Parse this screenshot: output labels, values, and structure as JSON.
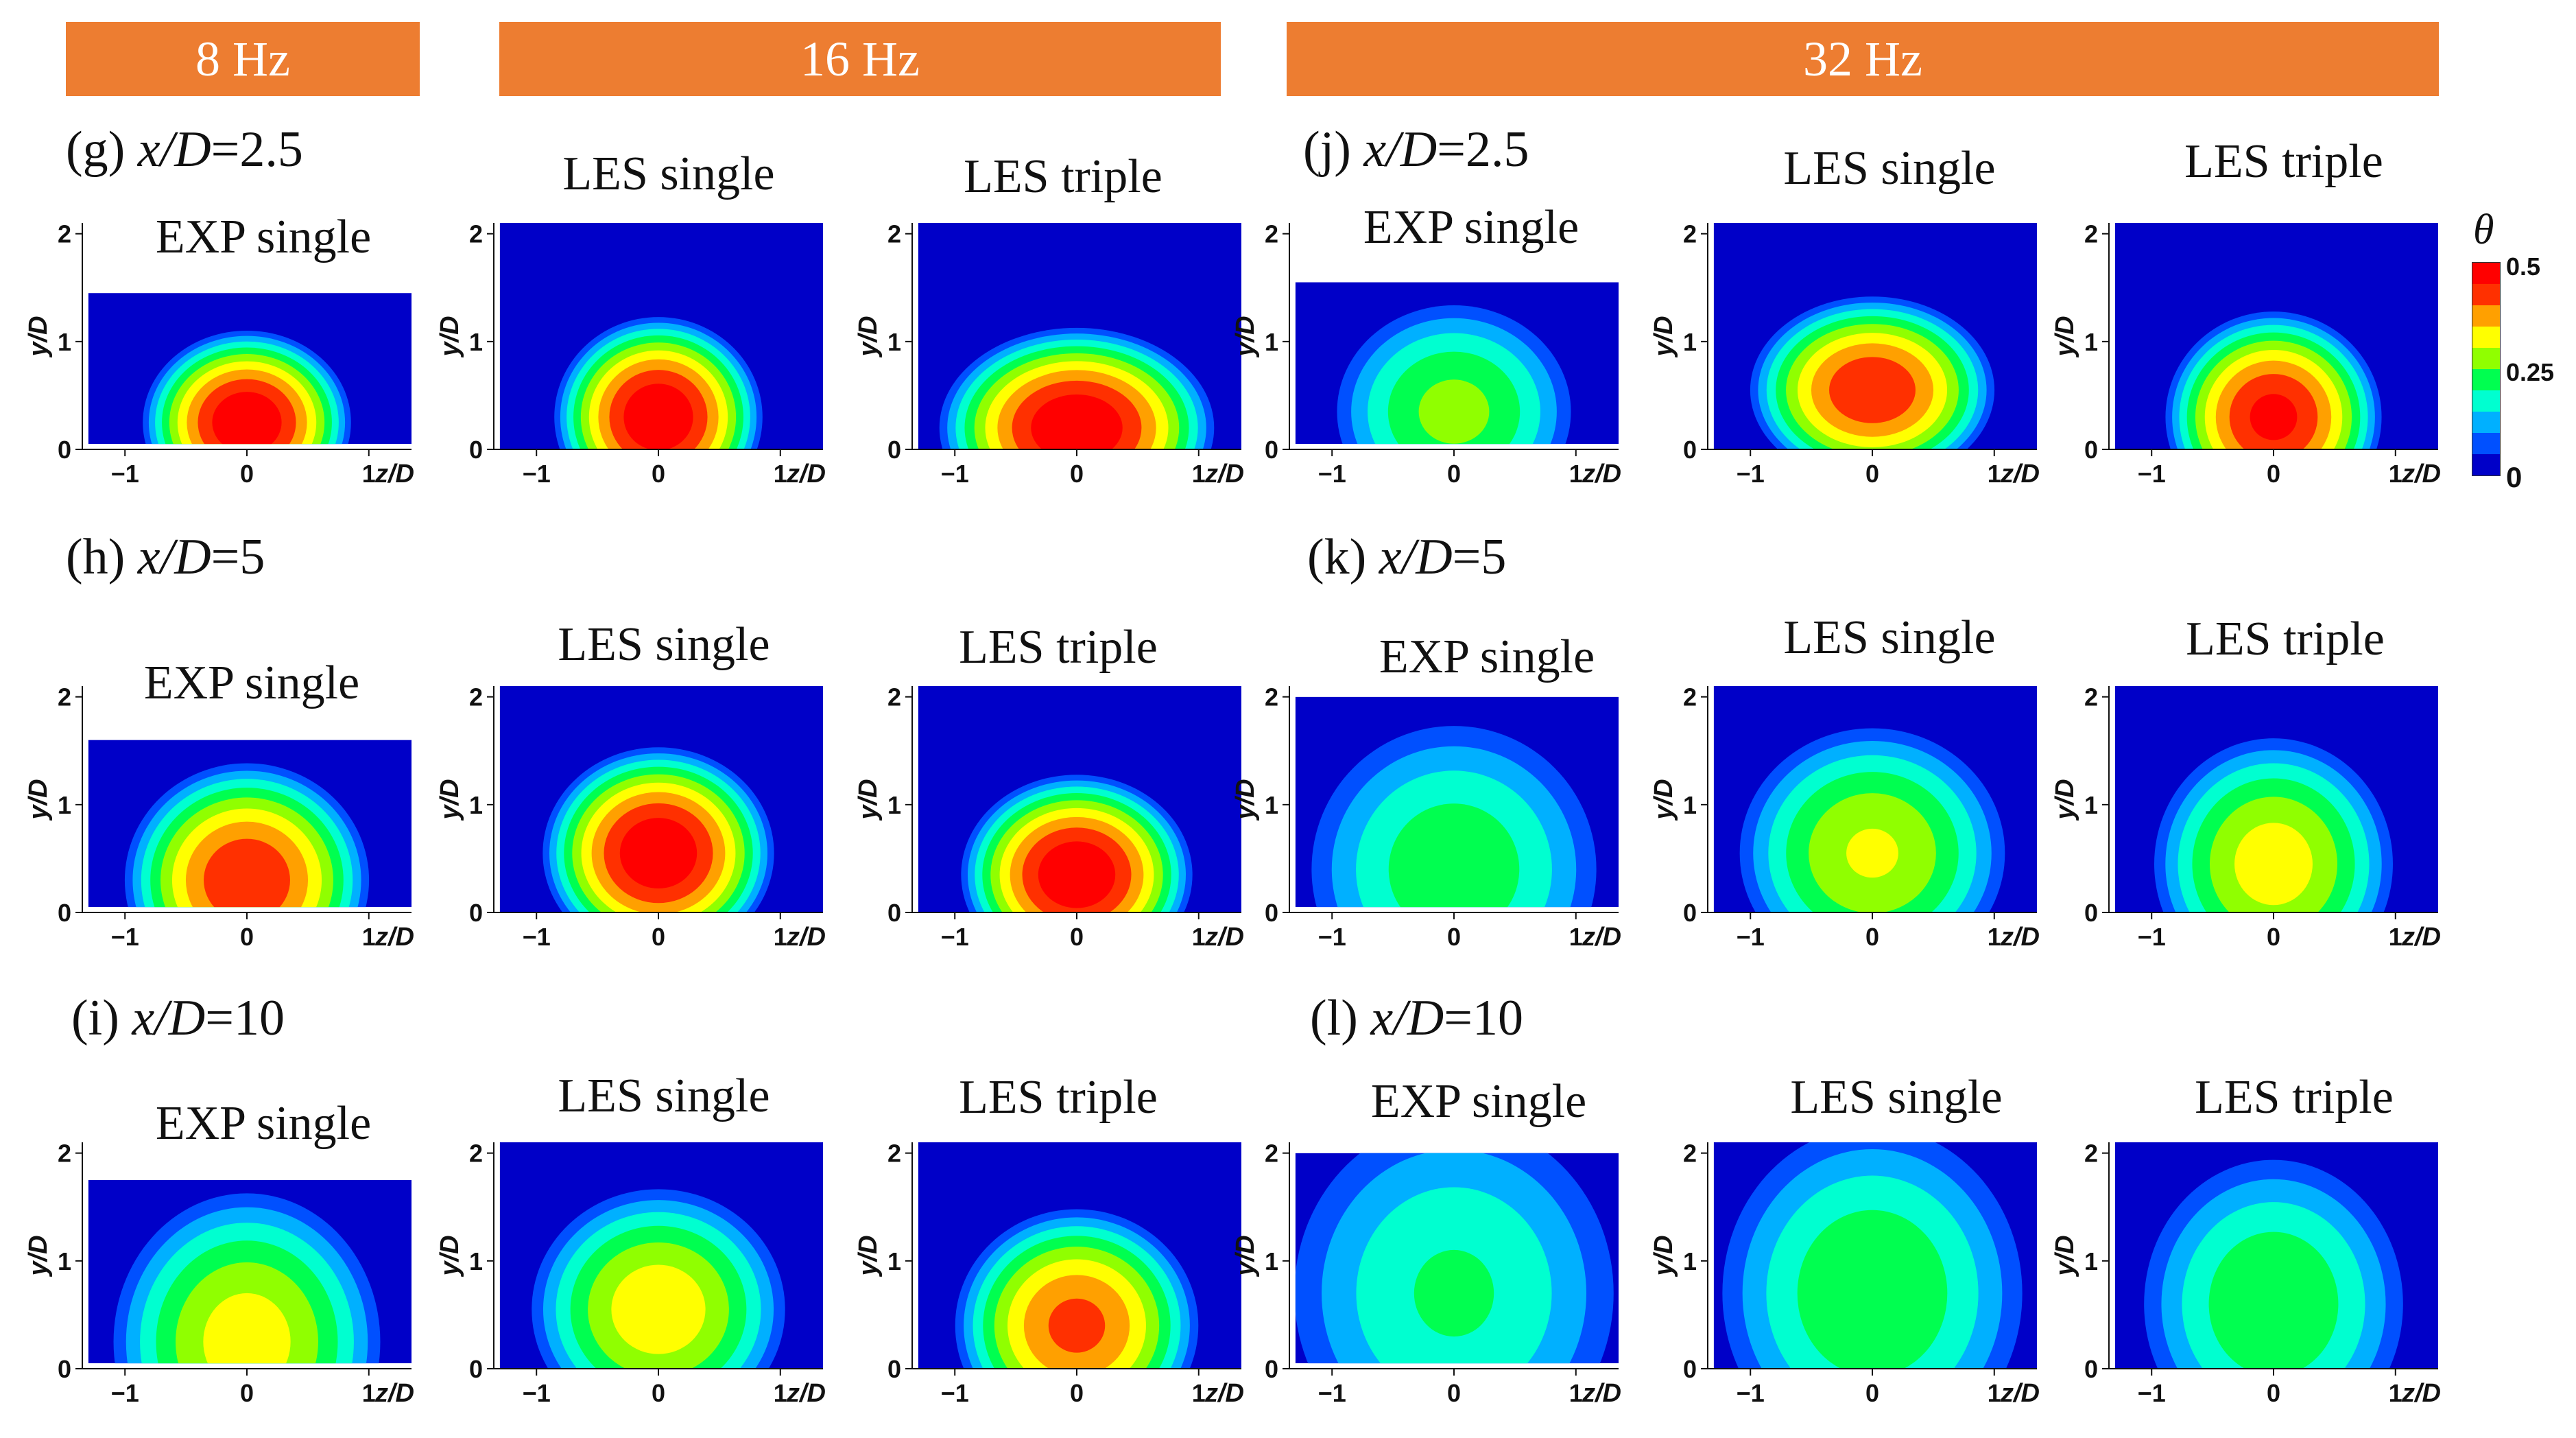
{
  "banners": [
    {
      "label": "8 Hz"
    },
    {
      "label": "16 Hz"
    },
    {
      "label": "32 Hz"
    }
  ],
  "rows": [
    {
      "left_label": {
        "letter": "(g)",
        "position": "x/D",
        "value": "=2.5"
      },
      "right_label": {
        "letter": "(j)",
        "position": "x/D",
        "value": "=2.5"
      }
    },
    {
      "left_label": {
        "letter": "(h)",
        "position": "x/D",
        "value": "=5"
      },
      "right_label": {
        "letter": "(k)",
        "position": "x/D",
        "value": "=5"
      }
    },
    {
      "left_label": {
        "letter": "(i)",
        "position": "x/D",
        "value": "=10"
      },
      "right_label": {
        "letter": "(l)",
        "position": "x/D",
        "value": "=10"
      }
    }
  ],
  "panel_titles": [
    "EXP single",
    "LES single",
    "LES triple",
    "EXP single",
    "LES single",
    "LES triple"
  ],
  "axes": {
    "x_label": "z/D",
    "y_label": "y/D",
    "x_ticks": [
      "−1",
      "0",
      "1"
    ],
    "y_ticks": [
      "0",
      "1",
      "2"
    ]
  },
  "colorbar": {
    "symbol": "θ",
    "ticks": [
      "0.5",
      "0.25",
      "0"
    ],
    "colors": [
      "#0000c8",
      "#0050ff",
      "#00b0ff",
      "#00ffd0",
      "#00ff50",
      "#90ff00",
      "#ffff00",
      "#ffa000",
      "#ff3000",
      "#ff0000"
    ]
  },
  "panels": [
    {
      "row": 0,
      "col": 0,
      "peak": 0.5,
      "width": 0.72,
      "height": 0.78,
      "center_y": 0.25,
      "exp_top": 1.45
    },
    {
      "row": 0,
      "col": 1,
      "peak": 0.5,
      "width": 0.72,
      "height": 0.85,
      "center_y": 0.3
    },
    {
      "row": 0,
      "col": 2,
      "peak": 0.5,
      "width": 0.95,
      "height": 0.85,
      "center_y": 0.2
    },
    {
      "row": 0,
      "col": 3,
      "peak": 0.27,
      "width": 0.85,
      "height": 0.95,
      "center_y": 0.35,
      "exp_top": 1.55
    },
    {
      "row": 0,
      "col": 4,
      "peak": 0.45,
      "width": 0.85,
      "height": 0.8,
      "center_y": 0.55
    },
    {
      "row": 0,
      "col": 5,
      "peak": 0.47,
      "width": 0.75,
      "height": 0.9,
      "center_y": 0.3
    },
    {
      "row": 1,
      "col": 0,
      "peak": 0.45,
      "width": 0.85,
      "height": 1.0,
      "center_y": 0.3,
      "exp_top": 1.6
    },
    {
      "row": 1,
      "col": 1,
      "peak": 0.5,
      "width": 0.8,
      "height": 0.9,
      "center_y": 0.55
    },
    {
      "row": 1,
      "col": 2,
      "peak": 0.5,
      "width": 0.8,
      "height": 0.85,
      "center_y": 0.35
    },
    {
      "row": 1,
      "col": 3,
      "peak": 0.24,
      "width": 1.05,
      "height": 1.3,
      "center_y": 0.4,
      "exp_top": 2.0
    },
    {
      "row": 1,
      "col": 4,
      "peak": 0.31,
      "width": 0.95,
      "height": 1.1,
      "center_y": 0.55
    },
    {
      "row": 1,
      "col": 5,
      "peak": 0.33,
      "width": 0.85,
      "height": 1.1,
      "center_y": 0.45
    },
    {
      "row": 2,
      "col": 0,
      "peak": 0.33,
      "width": 0.95,
      "height": 1.3,
      "center_y": 0.25,
      "exp_top": 1.75
    },
    {
      "row": 2,
      "col": 1,
      "peak": 0.34,
      "width": 0.9,
      "height": 1.05,
      "center_y": 0.55
    },
    {
      "row": 2,
      "col": 2,
      "peak": 0.42,
      "width": 0.85,
      "height": 1.0,
      "center_y": 0.4
    },
    {
      "row": 2,
      "col": 3,
      "peak": 0.21,
      "width": 1.2,
      "height": 1.6,
      "center_y": 0.7,
      "exp_top": 2.0
    },
    {
      "row": 2,
      "col": 4,
      "peak": 0.25,
      "width": 1.1,
      "height": 1.5,
      "center_y": 0.7
    },
    {
      "row": 2,
      "col": 5,
      "peak": 0.25,
      "width": 0.95,
      "height": 1.3,
      "center_y": 0.6
    }
  ]
}
